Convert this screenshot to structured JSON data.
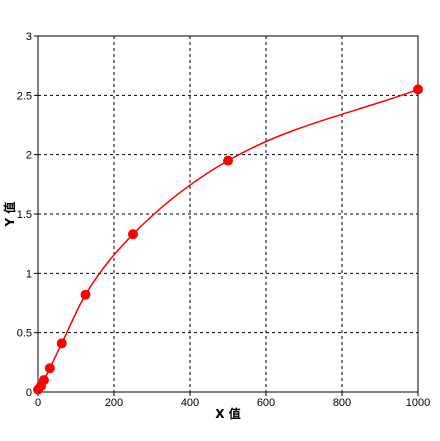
{
  "chart_data": {
    "type": "scatter",
    "title": "",
    "xlabel": "X 值",
    "ylabel": "Y 值",
    "xlim": [
      0,
      1000
    ],
    "ylim": [
      0,
      3
    ],
    "x_ticks": [
      "0",
      "200",
      "400",
      "600",
      "800",
      "1000"
    ],
    "y_ticks": [
      "0",
      "0.5",
      "1",
      "1.5",
      "2",
      "2.5",
      "3"
    ],
    "grid": true,
    "series": [
      {
        "color": "#ff0000",
        "x": [
          0,
          7.8,
          15.6,
          31.25,
          62.5,
          125,
          250,
          500,
          1000
        ],
        "y": [
          0.02,
          0.05,
          0.1,
          0.2,
          0.41,
          0.82,
          1.33,
          1.95,
          2.55
        ]
      }
    ]
  }
}
